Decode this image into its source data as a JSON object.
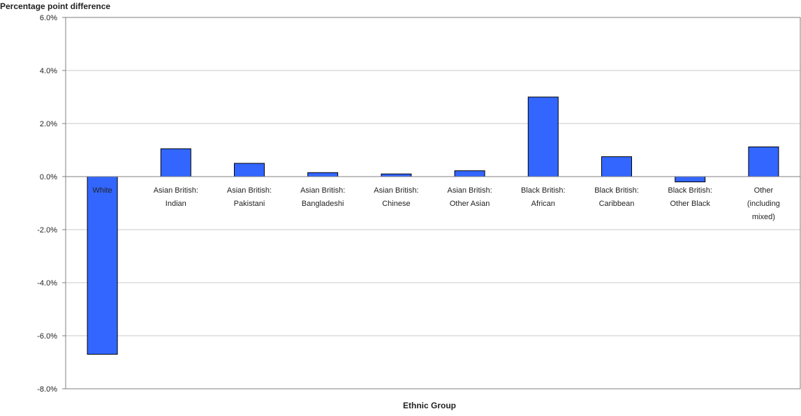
{
  "chart_data": {
    "type": "bar",
    "title": "",
    "ylabel": "Percentage point difference",
    "xlabel": "Ethnic Group",
    "ylim": [
      -8,
      6
    ],
    "ytick_step": 2,
    "ytick_labels": [
      "6.0%",
      "4.0%",
      "2.0%",
      "0.0%",
      "-2.0%",
      "-4.0%",
      "-6.0%",
      "-8.0%"
    ],
    "grid": true,
    "legend": "none",
    "categories": [
      "White",
      "Asian British: Indian",
      "Asian British: Pakistani",
      "Asian British: Bangladeshi",
      "Asian British: Chinese",
      "Asian British: Other Asian",
      "Black British: African",
      "Black British: Caribbean",
      "Black British: Other Black",
      "Other (including mixed)"
    ],
    "category_label_lines": [
      [
        "White"
      ],
      [
        "Asian British:",
        "Indian"
      ],
      [
        "Asian British:",
        "Pakistani"
      ],
      [
        "Asian British:",
        "Bangladeshi"
      ],
      [
        "Asian British:",
        "Chinese"
      ],
      [
        "Asian British:",
        "Other Asian"
      ],
      [
        "Black British:",
        "African"
      ],
      [
        "Black British:",
        "Caribbean"
      ],
      [
        "Black British:",
        "Other Black"
      ],
      [
        "Other",
        "(including",
        "mixed)"
      ]
    ],
    "values": [
      -6.7,
      1.05,
      0.5,
      0.15,
      0.1,
      0.22,
      3.0,
      0.75,
      -0.2,
      1.12
    ],
    "colors": {
      "bar": "#3366ff",
      "bar_edge": "#000000",
      "grid": "#c8c8c8",
      "axis": "#7f7f7f"
    }
  }
}
